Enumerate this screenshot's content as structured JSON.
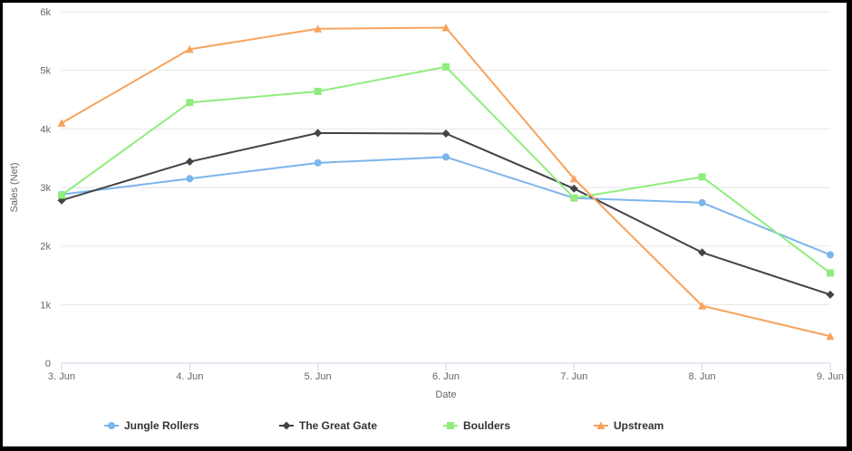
{
  "chart_data": {
    "type": "line",
    "xlabel": "Date",
    "ylabel": "Sales (Net)",
    "categories": [
      "3. Jun",
      "4. Jun",
      "5. Jun",
      "6. Jun",
      "7. Jun",
      "8. Jun",
      "9. Jun"
    ],
    "ylim": [
      0,
      6000
    ],
    "yticks": [
      {
        "value": 0,
        "label": "0"
      },
      {
        "value": 1000,
        "label": "1k"
      },
      {
        "value": 2000,
        "label": "2k"
      },
      {
        "value": 3000,
        "label": "3k"
      },
      {
        "value": 4000,
        "label": "4k"
      },
      {
        "value": 5000,
        "label": "5k"
      },
      {
        "value": 6000,
        "label": "6k"
      }
    ],
    "grid": true,
    "legend_position": "bottom",
    "series": [
      {
        "name": "Jungle Rollers",
        "color": "#7cb5ec",
        "marker": "circle",
        "values": [
          2880,
          3150,
          3420,
          3520,
          2820,
          2740,
          1850
        ]
      },
      {
        "name": "The Great Gate",
        "color": "#434348",
        "marker": "diamond",
        "values": [
          2780,
          3440,
          3930,
          3920,
          2980,
          1890,
          1170
        ]
      },
      {
        "name": "Boulders",
        "color": "#90ed7d",
        "marker": "square",
        "values": [
          2870,
          4450,
          4640,
          5060,
          2820,
          3180,
          1540
        ]
      },
      {
        "name": "Upstream",
        "color": "#f7a35c",
        "marker": "triangle",
        "values": [
          4100,
          5360,
          5710,
          5730,
          3150,
          980,
          460
        ]
      }
    ]
  }
}
